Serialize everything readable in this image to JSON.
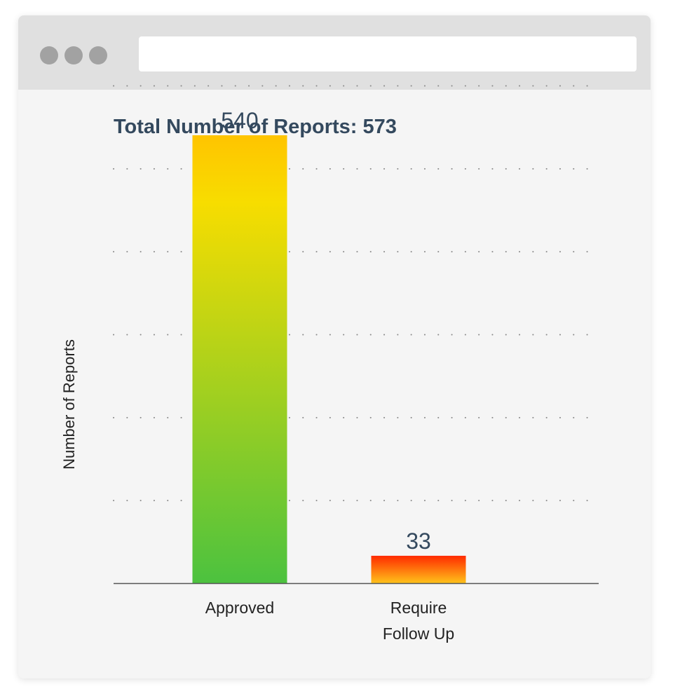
{
  "window": {
    "address_bar_value": ""
  },
  "colors": {
    "title": "#34495e",
    "value_label": "#34495e",
    "axis_text": "#222222",
    "approved_top": "#ffc400",
    "approved_mid": "#f7dd00",
    "approved_bottom": "#4cc23f",
    "followup_top": "#ff2a00",
    "followup_bottom": "#ffc21a"
  },
  "chart_data": {
    "type": "bar",
    "title": "Total Number of Reports: 573",
    "xlabel": "",
    "ylabel": "Number of Reports",
    "categories": [
      [
        "Approved"
      ],
      [
        "Require",
        "Follow Up"
      ]
    ],
    "values": [
      540,
      33
    ],
    "value_labels": [
      "540",
      "33"
    ],
    "ylim": [
      0,
      600
    ],
    "grid": "dotted-horizontal",
    "legend": "none"
  }
}
